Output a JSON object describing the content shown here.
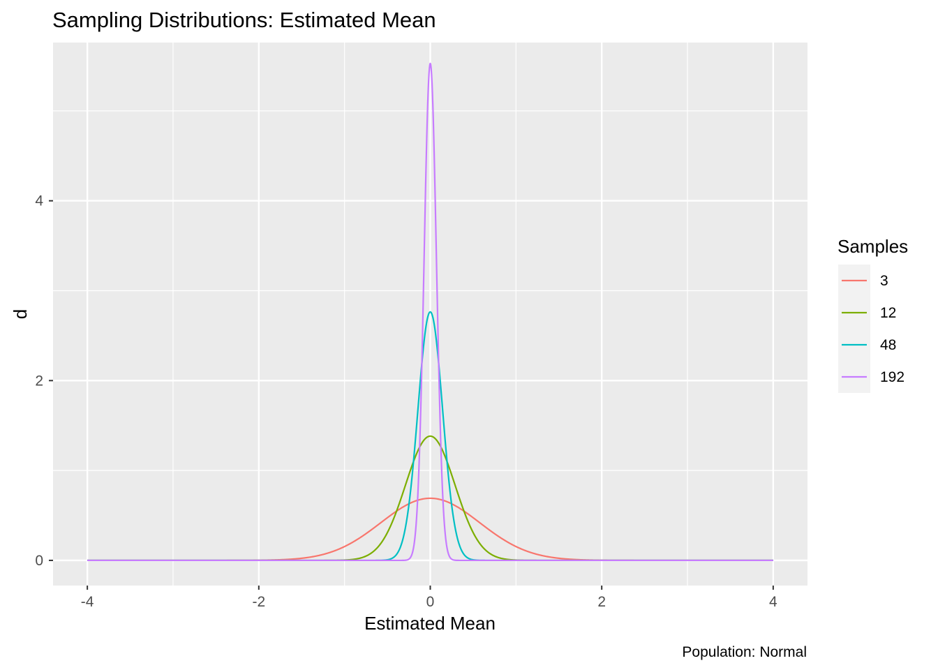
{
  "chart_data": {
    "type": "line",
    "title": "Sampling Distributions: Estimated Mean",
    "xlabel": "Estimated Mean",
    "ylabel": "d",
    "caption": "Population: Normal",
    "xlim": [
      -4.4,
      4.4
    ],
    "ylim": [
      -0.28,
      5.76
    ],
    "x_ticks": [
      -4,
      -2,
      0,
      2,
      4
    ],
    "y_ticks": [
      0,
      2,
      4
    ],
    "grid": true,
    "legend": {
      "title": "Samples",
      "position": "right"
    },
    "curve_x_range": [
      -4,
      4
    ],
    "series": [
      {
        "name": "3",
        "distribution": "normal",
        "mean": 0,
        "sd": 0.577,
        "peak": 0.691,
        "color": "#F8766D"
      },
      {
        "name": "12",
        "distribution": "normal",
        "mean": 0,
        "sd": 0.289,
        "peak": 1.382,
        "color": "#7CAE00"
      },
      {
        "name": "48",
        "distribution": "normal",
        "mean": 0,
        "sd": 0.144,
        "peak": 2.764,
        "color": "#00BFC4"
      },
      {
        "name": "192",
        "distribution": "normal",
        "mean": 0,
        "sd": 0.072,
        "peak": 5.528,
        "color": "#C77CFF"
      }
    ]
  }
}
